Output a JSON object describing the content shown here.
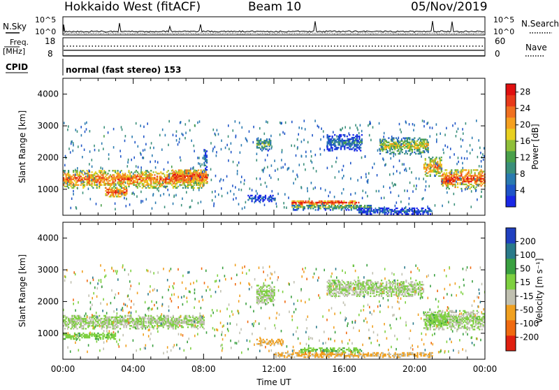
{
  "header": {
    "radar": "Hokkaido West (fitACF)",
    "beam": "Beam 10",
    "date": "05/Nov/2019"
  },
  "noise_panel": {
    "label_left": "N.Sky",
    "label_right": "N.Search",
    "left_ticks": [
      "10^5",
      "10^0"
    ],
    "right_ticks": [
      "10^5",
      "10^0"
    ]
  },
  "freq_panel": {
    "label_left_1": "Freq.",
    "label_left_2": "[MHz]",
    "label_left_3": "CPID",
    "label_right": "Nave",
    "left_ticks": [
      "18",
      "8"
    ],
    "right_ticks": [
      "60",
      "0"
    ]
  },
  "cpid_panel": {
    "text": "normal (fast stereo) 153"
  },
  "chart_data": [
    {
      "type": "heatmap",
      "panel": "power",
      "ylabel": "Slant Range [km]",
      "ylim": [
        180,
        4500
      ],
      "yticks": [
        "1000",
        "2000",
        "3000",
        "4000"
      ],
      "xlabel": "",
      "xlim_hours": [
        0,
        24
      ],
      "colorbar": {
        "label": "Power [dB]",
        "ticks": [
          "4",
          "8",
          "12",
          "16",
          "20",
          "24",
          "28"
        ],
        "colors": [
          "#1a28e6",
          "#1f55c8",
          "#2a7ab0",
          "#3a8f7a",
          "#4aa04a",
          "#8fbf3a",
          "#e8d020",
          "#f5a020",
          "#f07020",
          "#e83a1a",
          "#e01010"
        ],
        "range": [
          0,
          30
        ]
      },
      "bands": [
        {
          "t0": 0.0,
          "t1": 8.0,
          "r_center": 1300,
          "r_width": 550,
          "value": 24
        },
        {
          "t0": 2.4,
          "t1": 3.6,
          "r_center": 900,
          "r_width": 300,
          "value": 26
        },
        {
          "t0": 6.2,
          "t1": 8.2,
          "r_center": 1400,
          "r_width": 450,
          "value": 26
        },
        {
          "t0": 8.0,
          "t1": 8.2,
          "r_center": 1900,
          "r_width": 700,
          "value": 10
        },
        {
          "t0": 10.5,
          "t1": 12.0,
          "r_center": 700,
          "r_width": 200,
          "value": 6
        },
        {
          "t0": 11.0,
          "t1": 11.8,
          "r_center": 2400,
          "r_width": 400,
          "value": 14
        },
        {
          "t0": 13.0,
          "t1": 16.8,
          "r_center": 560,
          "r_width": 180,
          "value": 27
        },
        {
          "t0": 13.0,
          "t1": 17.5,
          "r_center": 420,
          "r_width": 180,
          "value": 14
        },
        {
          "t0": 15.0,
          "t1": 17.0,
          "r_center": 2450,
          "r_width": 500,
          "value": 9
        },
        {
          "t0": 16.8,
          "t1": 21.0,
          "r_center": 300,
          "r_width": 200,
          "value": 7
        },
        {
          "t0": 18.0,
          "t1": 20.8,
          "r_center": 2350,
          "r_width": 500,
          "value": 18
        },
        {
          "t0": 20.5,
          "t1": 21.5,
          "r_center": 1700,
          "r_width": 600,
          "value": 22
        },
        {
          "t0": 21.5,
          "t1": 24.0,
          "r_center": 1300,
          "r_width": 600,
          "value": 26
        }
      ]
    },
    {
      "type": "heatmap",
      "panel": "velocity",
      "ylabel": "Slant Range [km]",
      "ylim": [
        180,
        4500
      ],
      "yticks": [
        "1000",
        "2000",
        "3000",
        "4000"
      ],
      "xlabel": "Time UT",
      "xticks": [
        "00:00",
        "04:00",
        "08:00",
        "12:00",
        "16:00",
        "20:00",
        "00:00"
      ],
      "xlim_hours": [
        0,
        24
      ],
      "colorbar": {
        "label": "Velocity [m s⁻¹]",
        "ticks": [
          "200",
          "100",
          "50",
          "15",
          "-15",
          "-50",
          "-100",
          "-200"
        ],
        "colors": [
          "#2040c0",
          "#2a7a8a",
          "#3aa040",
          "#7ed040",
          "#c0c0b0",
          "#f0a020",
          "#f06a10",
          "#e02010"
        ],
        "range": [
          -250,
          250
        ]
      },
      "bands": [
        {
          "t0": 0.0,
          "t1": 8.0,
          "r_center": 1350,
          "r_width": 450,
          "value": 0
        },
        {
          "t0": 0.0,
          "t1": 3.0,
          "r_center": 900,
          "r_width": 200,
          "value": 40
        },
        {
          "t0": 11.0,
          "t1": 12.5,
          "r_center": 700,
          "r_width": 200,
          "value": -80
        },
        {
          "t0": 13.5,
          "t1": 17.0,
          "r_center": 450,
          "r_width": 150,
          "value": 45
        },
        {
          "t0": 12.0,
          "t1": 21.0,
          "r_center": 300,
          "r_width": 150,
          "value": -70
        },
        {
          "t0": 11.0,
          "t1": 12.0,
          "r_center": 2200,
          "r_width": 600,
          "value": 0
        },
        {
          "t0": 15.0,
          "t1": 20.5,
          "r_center": 2400,
          "r_width": 500,
          "value": 0
        },
        {
          "t0": 20.5,
          "t1": 24.0,
          "r_center": 1400,
          "r_width": 600,
          "value": 0
        },
        {
          "t0": 20.8,
          "t1": 21.8,
          "r_center": 1400,
          "r_width": 400,
          "value": 40
        }
      ]
    }
  ]
}
